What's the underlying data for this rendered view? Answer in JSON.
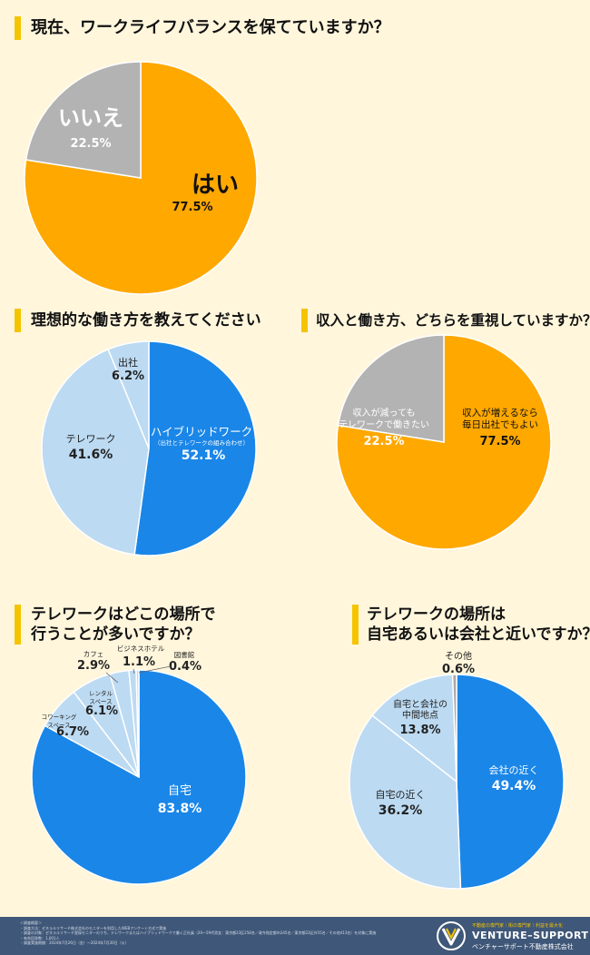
{
  "chart_data": [
    {
      "id": "c1",
      "type": "pie",
      "title": "現在、ワークライフバランスを保てていますか？",
      "series": [
        {
          "name": "はい",
          "value": 77.5,
          "label": "77.5%",
          "color": "#ffa800"
        },
        {
          "name": "いいえ",
          "value": 22.5,
          "label": "22.5%",
          "color": "#b3b3b3"
        }
      ]
    },
    {
      "id": "c2",
      "type": "pie",
      "title": "理想的な働き方を教えてください",
      "series": [
        {
          "name": "ハイブリッドワーク",
          "note": "（出社とテレワークの組み合わせ）",
          "value": 52.1,
          "label": "52.1%",
          "color": "#1a86e8"
        },
        {
          "name": "テレワーク",
          "value": 41.6,
          "label": "41.6%",
          "color": "#bcdaf2"
        },
        {
          "name": "出社",
          "value": 6.2,
          "label": "6.2%",
          "color": "#bcdaf2"
        }
      ]
    },
    {
      "id": "c3",
      "type": "pie",
      "title": "収入と働き方、どちらを重視していますか？",
      "series": [
        {
          "name": "収入が増えるなら毎日出社でもよい",
          "lines": [
            "収入が増えるなら",
            "毎日出社でもよい"
          ],
          "value": 77.5,
          "label": "77.5%",
          "color": "#ffa800"
        },
        {
          "name": "収入が減ってもテレワークで働きたい",
          "lines": [
            "収入が減っても",
            "テレワークで働きたい"
          ],
          "value": 22.5,
          "label": "22.5%",
          "color": "#b3b3b3"
        }
      ]
    },
    {
      "id": "c4",
      "type": "pie",
      "title": [
        "テレワークはどこの場所で",
        "行うことが多いですか？"
      ],
      "series": [
        {
          "name": "自宅",
          "value": 83.8,
          "label": "83.8%",
          "color": "#1a86e8"
        },
        {
          "name": "コワーキングスペース",
          "lines": [
            "コワーキング",
            "スペース"
          ],
          "value": 6.7,
          "label": "6.7%",
          "color": "#bcdaf2"
        },
        {
          "name": "レンタルスペース",
          "lines": [
            "レンタル",
            "スペース"
          ],
          "value": 6.1,
          "label": "6.1%",
          "color": "#bcdaf2"
        },
        {
          "name": "カフェ",
          "value": 2.9,
          "label": "2.9%",
          "color": "#bcdaf2"
        },
        {
          "name": "ビジネスホテル",
          "value": 1.1,
          "label": "1.1%",
          "color": "#bcdaf2"
        },
        {
          "name": "図書館",
          "value": 0.4,
          "label": "0.4%",
          "color": "#bcdaf2"
        }
      ]
    },
    {
      "id": "c5",
      "type": "pie",
      "title": [
        "テレワークの場所は",
        "自宅あるいは会社と近いですか？"
      ],
      "series": [
        {
          "name": "会社の近く",
          "value": 49.4,
          "label": "49.4%",
          "color": "#1a86e8"
        },
        {
          "name": "自宅の近く",
          "value": 36.2,
          "label": "36.2%",
          "color": "#bcdaf2"
        },
        {
          "name": "自宅と会社の中間地点",
          "lines": [
            "自宅と会社の",
            "中間地点"
          ],
          "value": 13.8,
          "label": "13.8%",
          "color": "#bcdaf2"
        },
        {
          "name": "その他",
          "value": 0.6,
          "label": "0.6%",
          "color": "#a9a9a9"
        }
      ]
    }
  ],
  "footer": {
    "notes": [
      "＜調査概要＞",
      "・調査方法：ゼネラルリサーチ株式会社のモニターを利用したWEBアンケート方式で実施",
      "・調査の対象：ゼネラルリサーチ登録モニターのうち、テレワークまたはハイブリッドワークで働く正社員（20～59代男女：東京都23区258名／政令指定都市245名／東京都23区外55名／その他413名）を対象に実施",
      "・有効回答数：1,001人",
      "・調査実施期間：2024年7月26日（金）～2024年7月30日（火）"
    ],
    "logo_tag": "不動産の専門家｜街の専門家｜利益を最大化",
    "logo_name": "VENTURE–SUPPORT",
    "logo_sub": "ベンチャーサポート不動産株式会社",
    "logo_icon": "venture-support-logo-icon"
  }
}
